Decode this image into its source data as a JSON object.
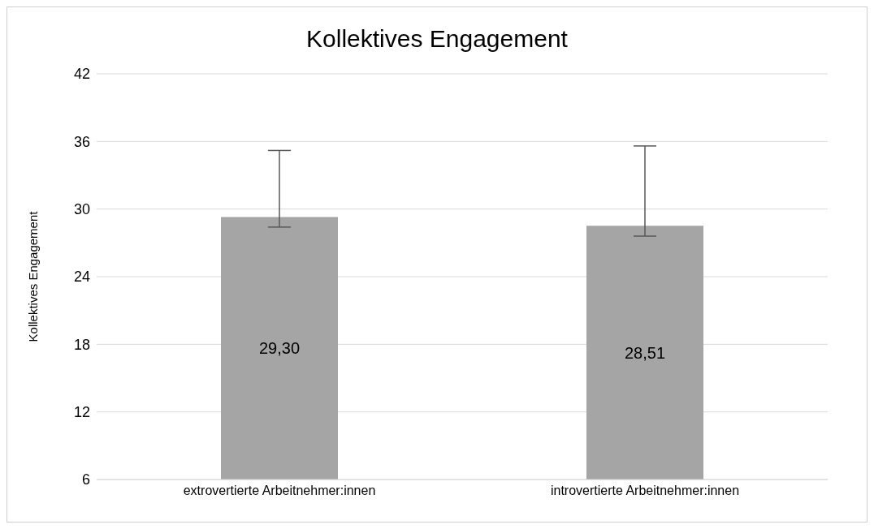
{
  "chart_data": {
    "type": "bar",
    "title": "Kollektives Engagement",
    "ylabel": "Kollektives Engagement",
    "categories": [
      "extrovertierte Arbeitnehmer:innen",
      "introvertierte Arbeitnehmer:innen"
    ],
    "values": [
      29.3,
      28.51
    ],
    "value_labels": [
      "29,30",
      "28,51"
    ],
    "errors": [
      [
        28.4,
        35.2
      ],
      [
        27.6,
        35.6
      ]
    ],
    "color": "#a5a5a5",
    "ylim": [
      6,
      42
    ],
    "yticks": [
      6,
      12,
      18,
      24,
      30,
      36,
      42
    ],
    "grid": "y"
  }
}
